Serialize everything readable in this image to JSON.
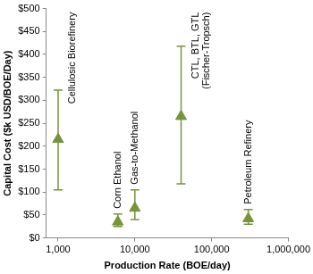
{
  "chart_data": {
    "type": "scatter",
    "x_label": "Production Rate (BOE/day)",
    "y_label": "Capital Cost ($k USD/BOE/Day)",
    "x": [
      1000,
      6000,
      10000,
      40000,
      300000
    ],
    "values": [
      215,
      35,
      65,
      265,
      42
    ],
    "error_low": [
      105,
      25,
      40,
      118,
      30
    ],
    "error_high": [
      322,
      52,
      105,
      418,
      62
    ],
    "point_labels": [
      [
        "Cellulosic Biorefinery"
      ],
      [
        "Corn Ethanol"
      ],
      [
        "Gas-to-Methanol"
      ],
      [
        "CTL, BTL, GTL",
        "(Fischer-Tropsch)"
      ],
      [
        "Petroleum Refinery"
      ]
    ],
    "color": "#77933c",
    "marker": "triangle",
    "log": "x",
    "grid": false,
    "xlim": [
      700,
      1000000
    ],
    "xticks": [
      {
        "value": 1000,
        "label": "1,000"
      },
      {
        "value": 10000,
        "label": "10,000"
      },
      {
        "value": 100000,
        "label": "100,000"
      },
      {
        "value": 1000000,
        "label": "1,000,000"
      }
    ],
    "ylim": [
      0,
      500
    ],
    "yticks": [
      {
        "value": 0,
        "label": "$0"
      },
      {
        "value": 50,
        "label": "$50"
      },
      {
        "value": 100,
        "label": "$100"
      },
      {
        "value": 150,
        "label": "$150"
      },
      {
        "value": 200,
        "label": "$200"
      },
      {
        "value": 250,
        "label": "$250"
      },
      {
        "value": 300,
        "label": "$300"
      },
      {
        "value": 350,
        "label": "$350"
      },
      {
        "value": 400,
        "label": "$400"
      },
      {
        "value": 450,
        "label": "$450"
      },
      {
        "value": 500,
        "label": "$500"
      }
    ]
  }
}
